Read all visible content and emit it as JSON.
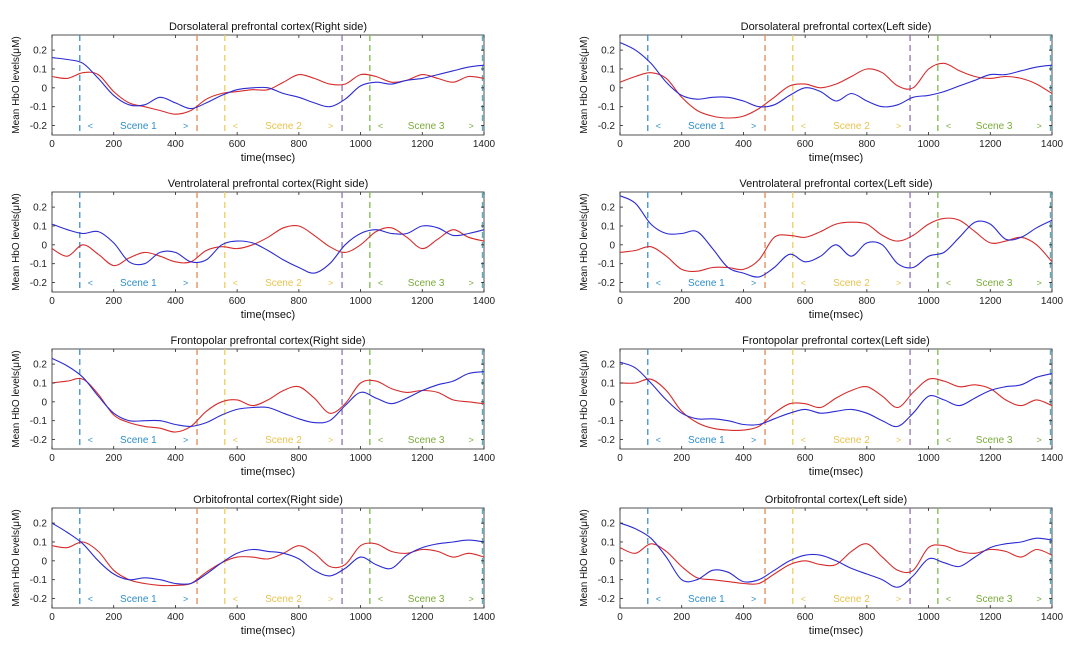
{
  "colors": {
    "series_1": "#d62c2c",
    "series_2": "#2b2bd2",
    "axis": "#262626",
    "scene_1": "#2f8ec9",
    "scene_2": "#e8c34e",
    "scene_3": "#7aab3a",
    "marker_1": "#3d8fd0",
    "marker_2": "#e08b56",
    "marker_3": "#efcd62",
    "marker_4": "#8b73b4",
    "marker_5": "#7dba50",
    "marker_6": "#4fb0c8"
  },
  "shared": {
    "xlabel": "time(msec)",
    "ylabel": "Mean HbO levels(μM)",
    "xlim": [
      0,
      1400
    ],
    "ylim": [
      -0.25,
      0.28
    ],
    "xticks": [
      0,
      200,
      400,
      600,
      800,
      1000,
      1200,
      1400
    ],
    "yticks": [
      -0.2,
      -0.1,
      0,
      0.1,
      0.2
    ],
    "ytick_labels": [
      "-0.2",
      "-0.1",
      "0",
      "0.1",
      "0.2"
    ],
    "markers": [
      90,
      470,
      560,
      940,
      1030,
      1395
    ],
    "scenes": [
      {
        "label": "Scene 1",
        "start": 90,
        "end": 470,
        "left_mark": "<",
        "right_mark": ">"
      },
      {
        "label": "Scene 2",
        "start": 560,
        "end": 940,
        "left_mark": "<",
        "right_mark": ">"
      },
      {
        "label": "Scene 3",
        "start": 1030,
        "end": 1395,
        "left_mark": "<",
        "right_mark": ">"
      }
    ]
  },
  "chart_data": [
    {
      "type": "line",
      "title": "Dorsolateral prefrontal cortex(Right side)",
      "x": [
        0,
        50,
        100,
        150,
        200,
        250,
        300,
        350,
        400,
        450,
        500,
        550,
        600,
        650,
        700,
        750,
        800,
        850,
        900,
        950,
        1000,
        1050,
        1100,
        1150,
        1200,
        1250,
        1300,
        1350,
        1400
      ],
      "series": [
        {
          "values": [
            0.06,
            0.05,
            0.08,
            0.07,
            -0.02,
            -0.08,
            -0.1,
            -0.12,
            -0.14,
            -0.12,
            -0.06,
            -0.03,
            -0.02,
            -0.01,
            -0.01,
            0.03,
            0.07,
            0.05,
            0.02,
            0.02,
            0.07,
            0.06,
            0.03,
            0.04,
            0.07,
            0.05,
            0.03,
            0.06,
            0.05
          ]
        },
        {
          "values": [
            0.16,
            0.15,
            0.13,
            0.05,
            -0.04,
            -0.09,
            -0.09,
            -0.05,
            -0.08,
            -0.11,
            -0.08,
            -0.04,
            -0.01,
            0.0,
            0.0,
            -0.03,
            -0.05,
            -0.08,
            -0.1,
            -0.06,
            0.01,
            0.03,
            0.02,
            0.04,
            0.05,
            0.07,
            0.09,
            0.11,
            0.12
          ]
        }
      ]
    },
    {
      "type": "line",
      "title": "Dorsolateral prefrontal cortex(Left side)",
      "x": [
        0,
        50,
        100,
        150,
        200,
        250,
        300,
        350,
        400,
        450,
        500,
        550,
        600,
        650,
        700,
        750,
        800,
        850,
        900,
        950,
        1000,
        1050,
        1100,
        1150,
        1200,
        1250,
        1300,
        1350,
        1400
      ],
      "series": [
        {
          "values": [
            0.03,
            0.06,
            0.08,
            0.05,
            -0.05,
            -0.12,
            -0.15,
            -0.16,
            -0.15,
            -0.11,
            -0.05,
            0.01,
            0.02,
            0.0,
            0.02,
            0.06,
            0.1,
            0.08,
            0.01,
            0.0,
            0.1,
            0.13,
            0.09,
            0.06,
            0.05,
            0.06,
            0.05,
            0.02,
            -0.03
          ]
        },
        {
          "values": [
            0.24,
            0.2,
            0.13,
            0.03,
            -0.04,
            -0.06,
            -0.05,
            -0.05,
            -0.07,
            -0.1,
            -0.09,
            -0.04,
            0.0,
            -0.02,
            -0.07,
            -0.03,
            -0.07,
            -0.1,
            -0.09,
            -0.05,
            -0.04,
            -0.02,
            0.01,
            0.04,
            0.07,
            0.07,
            0.09,
            0.11,
            0.12
          ]
        }
      ]
    },
    {
      "type": "line",
      "title": "Ventrolateral prefrontal cortex(Right side)",
      "x": [
        0,
        50,
        100,
        150,
        200,
        250,
        300,
        350,
        400,
        450,
        500,
        550,
        600,
        650,
        700,
        750,
        800,
        850,
        900,
        950,
        1000,
        1050,
        1100,
        1150,
        1200,
        1250,
        1300,
        1350,
        1400
      ],
      "series": [
        {
          "values": [
            -0.02,
            -0.06,
            0.0,
            -0.05,
            -0.11,
            -0.07,
            -0.04,
            -0.06,
            -0.09,
            -0.09,
            -0.03,
            -0.01,
            -0.02,
            0.0,
            0.04,
            0.09,
            0.1,
            0.05,
            -0.01,
            -0.04,
            0.0,
            0.07,
            0.09,
            0.04,
            -0.02,
            0.03,
            0.08,
            0.04,
            0.02
          ]
        },
        {
          "values": [
            0.11,
            0.08,
            0.06,
            0.07,
            0.01,
            -0.09,
            -0.1,
            -0.04,
            -0.04,
            -0.09,
            -0.08,
            0.0,
            0.02,
            0.01,
            -0.03,
            -0.08,
            -0.12,
            -0.15,
            -0.1,
            0.0,
            0.06,
            0.08,
            0.06,
            0.06,
            0.1,
            0.09,
            0.05,
            0.06,
            0.08
          ]
        }
      ]
    },
    {
      "type": "line",
      "title": "Ventrolateral prefrontal cortex(Left side)",
      "x": [
        0,
        50,
        100,
        150,
        200,
        250,
        300,
        350,
        400,
        450,
        500,
        550,
        600,
        650,
        700,
        750,
        800,
        850,
        900,
        950,
        1000,
        1050,
        1100,
        1150,
        1200,
        1250,
        1300,
        1350,
        1400
      ],
      "series": [
        {
          "values": [
            -0.04,
            -0.03,
            -0.01,
            -0.06,
            -0.13,
            -0.14,
            -0.12,
            -0.12,
            -0.13,
            -0.08,
            0.04,
            0.05,
            0.04,
            0.07,
            0.11,
            0.12,
            0.11,
            0.05,
            0.02,
            0.05,
            0.11,
            0.14,
            0.13,
            0.07,
            0.01,
            0.02,
            0.04,
            0.0,
            -0.09
          ]
        },
        {
          "values": [
            0.26,
            0.22,
            0.11,
            0.06,
            0.06,
            0.07,
            -0.02,
            -0.12,
            -0.15,
            -0.17,
            -0.12,
            -0.05,
            -0.09,
            -0.06,
            0.0,
            -0.06,
            0.01,
            0.0,
            -0.1,
            -0.12,
            -0.06,
            -0.04,
            0.04,
            0.12,
            0.11,
            0.03,
            0.04,
            0.09,
            0.13
          ]
        }
      ]
    },
    {
      "type": "line",
      "title": "Frontopolar prefrontal cortex(Right side)",
      "x": [
        0,
        50,
        100,
        150,
        200,
        250,
        300,
        350,
        400,
        450,
        500,
        550,
        600,
        650,
        700,
        750,
        800,
        850,
        900,
        950,
        1000,
        1050,
        1100,
        1150,
        1200,
        1250,
        1300,
        1350,
        1400
      ],
      "series": [
        {
          "values": [
            0.1,
            0.11,
            0.12,
            0.04,
            -0.07,
            -0.11,
            -0.13,
            -0.14,
            -0.16,
            -0.13,
            -0.05,
            0.0,
            0.01,
            -0.02,
            0.01,
            0.06,
            0.08,
            0.02,
            -0.06,
            -0.01,
            0.1,
            0.11,
            0.07,
            0.05,
            0.06,
            0.05,
            0.01,
            0.0,
            -0.01
          ]
        },
        {
          "values": [
            0.23,
            0.19,
            0.13,
            0.03,
            -0.06,
            -0.1,
            -0.1,
            -0.1,
            -0.12,
            -0.13,
            -0.11,
            -0.07,
            -0.04,
            -0.03,
            -0.03,
            -0.06,
            -0.09,
            -0.11,
            -0.1,
            -0.02,
            0.05,
            0.02,
            -0.01,
            0.02,
            0.06,
            0.09,
            0.11,
            0.15,
            0.16
          ]
        }
      ]
    },
    {
      "type": "line",
      "title": "Frontopolar prefrontal cortex(Left side)",
      "x": [
        0,
        50,
        100,
        150,
        200,
        250,
        300,
        350,
        400,
        450,
        500,
        550,
        600,
        650,
        700,
        750,
        800,
        850,
        900,
        950,
        1000,
        1050,
        1100,
        1150,
        1200,
        1250,
        1300,
        1350,
        1400
      ],
      "series": [
        {
          "values": [
            0.1,
            0.1,
            0.12,
            0.06,
            -0.05,
            -0.11,
            -0.14,
            -0.15,
            -0.15,
            -0.13,
            -0.06,
            -0.01,
            -0.01,
            -0.03,
            0.02,
            0.06,
            0.08,
            0.03,
            -0.03,
            0.05,
            0.12,
            0.11,
            0.08,
            0.09,
            0.07,
            0.01,
            -0.02,
            0.01,
            -0.02
          ]
        },
        {
          "values": [
            0.21,
            0.18,
            0.1,
            0.01,
            -0.06,
            -0.09,
            -0.09,
            -0.1,
            -0.12,
            -0.12,
            -0.09,
            -0.06,
            -0.04,
            -0.06,
            -0.05,
            -0.04,
            -0.06,
            -0.1,
            -0.13,
            -0.06,
            0.03,
            0.01,
            -0.02,
            0.02,
            0.06,
            0.08,
            0.09,
            0.13,
            0.15
          ]
        }
      ]
    },
    {
      "type": "line",
      "title": "Orbitofrontal cortex(Right side)",
      "x": [
        0,
        50,
        100,
        150,
        200,
        250,
        300,
        350,
        400,
        450,
        500,
        550,
        600,
        650,
        700,
        750,
        800,
        850,
        900,
        950,
        1000,
        1050,
        1100,
        1150,
        1200,
        1250,
        1300,
        1350,
        1400
      ],
      "series": [
        {
          "values": [
            0.08,
            0.07,
            0.1,
            0.05,
            -0.05,
            -0.1,
            -0.12,
            -0.13,
            -0.13,
            -0.12,
            -0.06,
            -0.01,
            0.02,
            0.02,
            0.01,
            0.04,
            0.08,
            0.04,
            -0.03,
            -0.02,
            0.08,
            0.09,
            0.05,
            0.04,
            0.06,
            0.05,
            0.02,
            0.04,
            0.02
          ]
        },
        {
          "values": [
            0.2,
            0.15,
            0.09,
            0.0,
            -0.07,
            -0.1,
            -0.09,
            -0.1,
            -0.12,
            -0.12,
            -0.07,
            -0.01,
            0.04,
            0.06,
            0.05,
            0.04,
            0.01,
            -0.05,
            -0.08,
            -0.04,
            0.02,
            -0.02,
            -0.04,
            0.03,
            0.07,
            0.09,
            0.1,
            0.11,
            0.1
          ]
        }
      ]
    },
    {
      "type": "line",
      "title": "Orbitofrontal cortex(Left side)",
      "x": [
        0,
        50,
        100,
        150,
        200,
        250,
        300,
        350,
        400,
        450,
        500,
        550,
        600,
        650,
        700,
        750,
        800,
        850,
        900,
        950,
        1000,
        1050,
        1100,
        1150,
        1200,
        1250,
        1300,
        1350,
        1400
      ],
      "series": [
        {
          "values": [
            0.07,
            0.04,
            0.09,
            0.05,
            -0.03,
            -0.09,
            -0.1,
            -0.11,
            -0.12,
            -0.12,
            -0.07,
            -0.02,
            0.0,
            -0.02,
            -0.02,
            0.05,
            0.09,
            0.02,
            -0.05,
            -0.05,
            0.07,
            0.08,
            0.05,
            0.04,
            0.06,
            0.05,
            0.02,
            0.06,
            0.03
          ]
        },
        {
          "values": [
            0.2,
            0.17,
            0.12,
            0.02,
            -0.1,
            -0.1,
            -0.05,
            -0.06,
            -0.11,
            -0.1,
            -0.05,
            0.0,
            0.03,
            0.03,
            0.0,
            -0.04,
            -0.07,
            -0.1,
            -0.14,
            -0.08,
            0.01,
            -0.01,
            -0.03,
            0.02,
            0.07,
            0.09,
            0.1,
            0.12,
            0.11
          ]
        }
      ]
    }
  ]
}
